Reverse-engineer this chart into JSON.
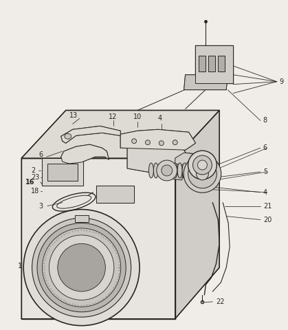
{
  "bg": "#f0ede8",
  "lc": "#2a2520",
  "fig_w": 4.19,
  "fig_h": 4.8,
  "dpi": 100
}
